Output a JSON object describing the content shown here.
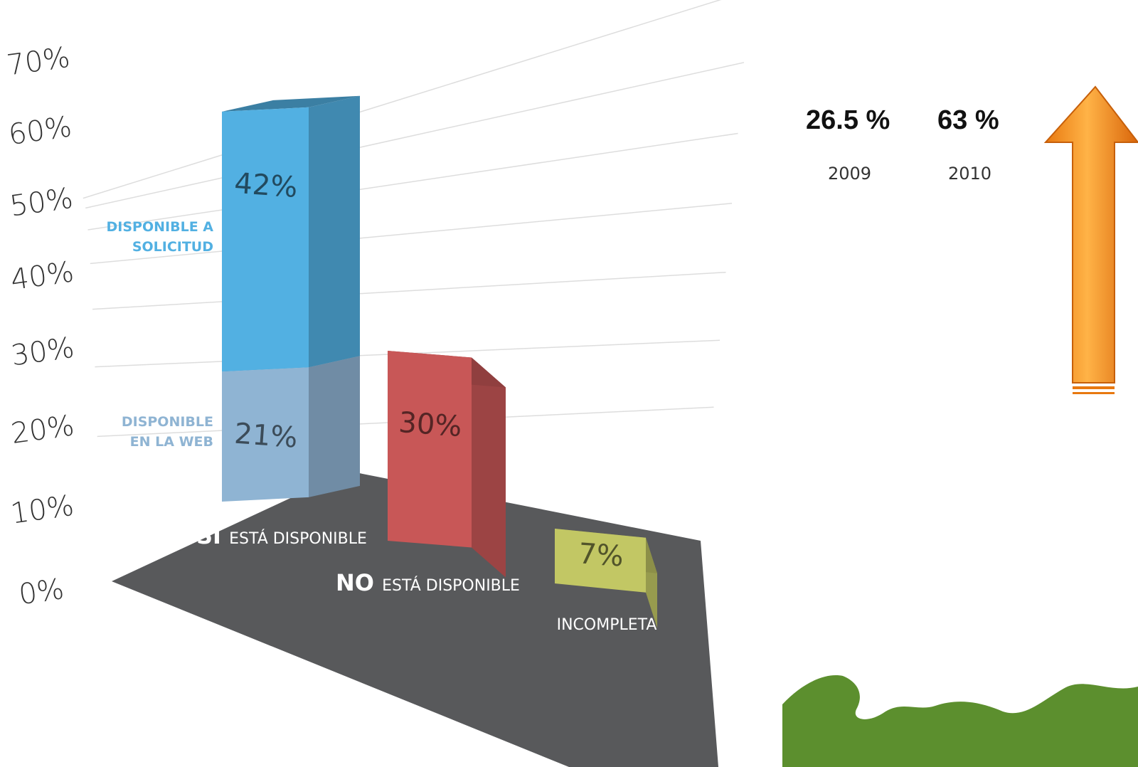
{
  "chart_data": {
    "type": "bar",
    "stacked": true,
    "title": "",
    "xlabel": "",
    "ylabel": "",
    "ylim": [
      0,
      70
    ],
    "y_ticks": [
      "0%",
      "10%",
      "20%",
      "30%",
      "40%",
      "50%",
      "60%",
      "70%"
    ],
    "categories": [
      {
        "strong": "SÍ",
        "rest": "ESTÁ DISPONIBLE"
      },
      {
        "strong": "NO",
        "rest": "ESTÁ DISPONIBLE"
      },
      {
        "strong": "",
        "rest": "INCOMPLETA"
      }
    ],
    "segments": [
      {
        "category_index": 0,
        "start": 0,
        "value": 21,
        "label": "21%",
        "color": "#8fb4d3"
      },
      {
        "category_index": 0,
        "start": 21,
        "value": 42,
        "label": "42%",
        "color": "#52b0e2"
      },
      {
        "category_index": 1,
        "start": 0,
        "value": 30,
        "label": "30%",
        "color": "#c85757"
      },
      {
        "category_index": 2,
        "start": 0,
        "value": 7,
        "label": "7%",
        "color": "#c2c764"
      }
    ],
    "annotations": [
      {
        "lines": [
          "DISPONIBLE A",
          "SOLICITUD"
        ],
        "color": "#52b0e2"
      },
      {
        "lines": [
          "DISPONIBLE",
          "EN LA WEB"
        ],
        "color": "#8fb4d3"
      }
    ],
    "grid": true,
    "floor_color": "#58595b"
  },
  "stats": [
    {
      "value": "26.5 %",
      "year": "2009"
    },
    {
      "value": "63 %",
      "year": "2010"
    }
  ],
  "colors": {
    "arrow": "#f7941d",
    "grass": "#5c8f2e"
  },
  "icons": [
    "up-arrow-icon",
    "grass-decoration"
  ]
}
